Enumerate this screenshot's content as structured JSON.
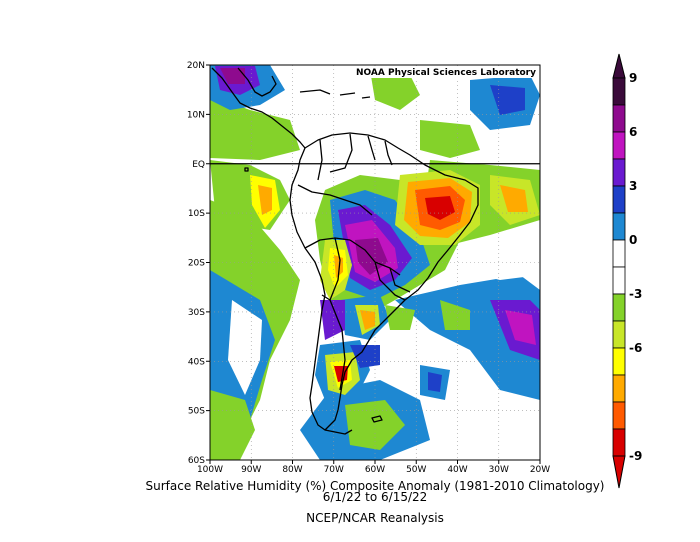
{
  "credit": "NOAA Physical Sciences Laboratory",
  "caption": {
    "title": "Surface Relative Humidity (%) Composite Anomaly (1981-2010 Climatology)",
    "date_range": "6/1/22  to 6/15/22",
    "source": "NCEP/NCAR Reanalysis"
  },
  "map": {
    "lon_range": [
      -100,
      -20
    ],
    "lat_range": [
      -60,
      20
    ],
    "lat_ticks": [
      {
        "value": 20,
        "label": "20N"
      },
      {
        "value": 10,
        "label": "10N"
      },
      {
        "value": 0,
        "label": "EQ"
      },
      {
        "value": -10,
        "label": "10S"
      },
      {
        "value": -20,
        "label": "20S"
      },
      {
        "value": -30,
        "label": "30S"
      },
      {
        "value": -40,
        "label": "40S"
      },
      {
        "value": -50,
        "label": "50S"
      },
      {
        "value": -60,
        "label": "60S"
      }
    ],
    "lon_ticks": [
      {
        "value": -100,
        "label": "100W"
      },
      {
        "value": -90,
        "label": "90W"
      },
      {
        "value": -80,
        "label": "80W"
      },
      {
        "value": -70,
        "label": "70W"
      },
      {
        "value": -60,
        "label": "60W"
      },
      {
        "value": -50,
        "label": "50W"
      },
      {
        "value": -40,
        "label": "40W"
      },
      {
        "value": -30,
        "label": "30W"
      },
      {
        "value": -20,
        "label": "20W"
      }
    ]
  },
  "colorbar": {
    "levels": [
      {
        "label": "9",
        "color": "#3a0a3a"
      },
      {
        "label": "",
        "color": "#8e0a8e"
      },
      {
        "label": "6",
        "color": "#c014c0"
      },
      {
        "label": "",
        "color": "#6a1ad0"
      },
      {
        "label": "3",
        "color": "#1e40c8"
      },
      {
        "label": "",
        "color": "#1e88d2"
      },
      {
        "label": "0",
        "color": "#ffffff"
      },
      {
        "label": "",
        "color": "#ffffff"
      },
      {
        "label": "-3",
        "color": "#84d22a"
      },
      {
        "label": "",
        "color": "#c8e628"
      },
      {
        "label": "-6",
        "color": "#ffff00"
      },
      {
        "label": "",
        "color": "#ffaa00"
      },
      {
        "label": "-9",
        "color": "#ff5a00"
      },
      {
        "label": "",
        "color": "#d80000"
      }
    ]
  }
}
